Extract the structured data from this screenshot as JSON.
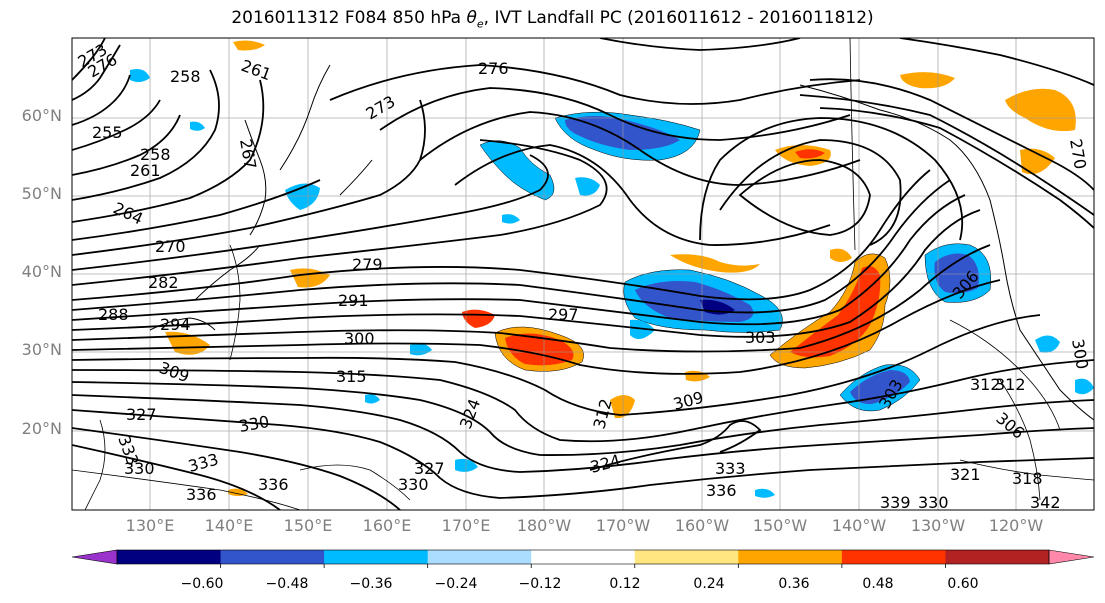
{
  "title": {
    "prefix": "2016011312 F084 850 hPa ",
    "symbol": "θ",
    "sub": "e",
    "suffix": ", IVT Landfall PC (2016011612 - 2016011812)"
  },
  "lat_labels": [
    "60°N",
    "50°N",
    "40°N",
    "30°N",
    "20°N"
  ],
  "lon_labels": [
    "130°E",
    "140°E",
    "150°E",
    "160°E",
    "170°E",
    "180°W",
    "170°W",
    "160°W",
    "150°W",
    "140°W",
    "130°W",
    "120°W"
  ],
  "colorbar": {
    "colors": [
      "#9933cc",
      "#000080",
      "#3355cc",
      "#00bbff",
      "#aaddff",
      "#ffffff",
      "#ffe680",
      "#ffa500",
      "#ff3300",
      "#b22222",
      "#ff88aa"
    ],
    "tick_labels": [
      "−0.60",
      "−0.48",
      "−0.36",
      "−0.24",
      "−0.12",
      "0.12",
      "0.24",
      "0.36",
      "0.48",
      "0.60"
    ]
  },
  "contour_labels": [
    "273",
    "276",
    "258",
    "261",
    "255",
    "258",
    "261",
    "264",
    "270",
    "282",
    "288",
    "294",
    "279",
    "291",
    "300",
    "297",
    "303",
    "309",
    "315",
    "327",
    "333",
    "330",
    "333",
    "336",
    "336",
    "330",
    "327",
    "324",
    "309",
    "312",
    "324",
    "333",
    "336",
    "330",
    "312",
    "306",
    "321",
    "318",
    "339",
    "330",
    "342",
    "267",
    "276",
    "273",
    "270",
    "306",
    "300",
    "312",
    "303"
  ]
}
